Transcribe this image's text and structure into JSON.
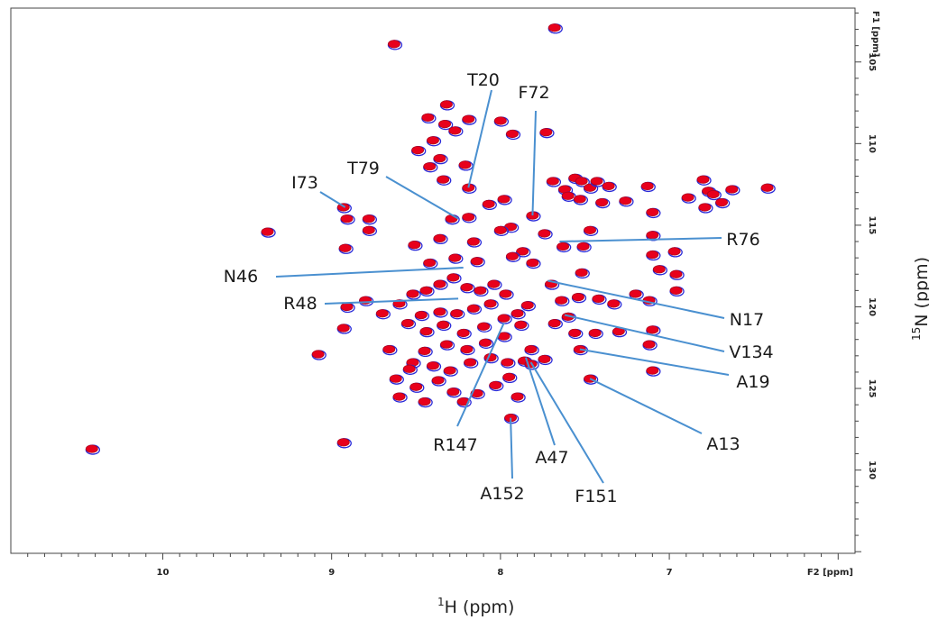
{
  "chart_data": {
    "type": "scatter",
    "x_axis": {
      "unit_label": "F2 [ppm]",
      "title_sup": "1",
      "title_main": "H (ppm)",
      "range": [
        10.9,
        5.9
      ],
      "ticks": [
        10,
        9,
        8,
        7
      ],
      "tick_labels": [
        "10",
        "9",
        "8",
        "7"
      ]
    },
    "y_axis": {
      "unit_label": "F1 [ppm]",
      "title_sup": "15",
      "title_main": "N (ppm)",
      "range": [
        101.7,
        135.1
      ],
      "ticks": [
        105,
        110,
        115,
        120,
        125,
        130
      ],
      "tick_labels": [
        "105",
        "110",
        "115",
        "120",
        "125",
        "130"
      ]
    },
    "grid": false,
    "colors": {
      "spectrum_a": "#e8001c",
      "spectrum_b": "#2a2ad8",
      "leader": "#4a90d0",
      "frame": "#444444"
    },
    "annotations": [
      {
        "label": "T20",
        "peak": [
          8.19,
          112.7
        ]
      },
      {
        "label": "F72",
        "peak": [
          7.81,
          114.4
        ]
      },
      {
        "label": "T79",
        "peak": [
          8.25,
          114.6
        ]
      },
      {
        "label": "I73",
        "peak": [
          8.92,
          113.9
        ]
      },
      {
        "label": "R76",
        "peak": [
          7.65,
          116.0
        ]
      },
      {
        "label": "N46",
        "peak": [
          8.22,
          117.6
        ]
      },
      {
        "label": "R48",
        "peak": [
          8.25,
          119.5
        ]
      },
      {
        "label": "N17",
        "peak": [
          7.72,
          118.4
        ]
      },
      {
        "label": "V134",
        "peak": [
          7.62,
          120.5
        ]
      },
      {
        "label": "A19",
        "peak": [
          7.53,
          122.6
        ]
      },
      {
        "label": "A13",
        "peak": [
          7.47,
          124.4
        ]
      },
      {
        "label": "R147",
        "peak": [
          7.98,
          121.0
        ]
      },
      {
        "label": "A47",
        "peak": [
          7.85,
          123.1
        ]
      },
      {
        "label": "F151",
        "peak": [
          7.82,
          123.4
        ]
      },
      {
        "label": "A152",
        "peak": [
          7.94,
          126.8
        ]
      }
    ],
    "peaks": [
      [
        10.42,
        128.7
      ],
      [
        9.38,
        115.4
      ],
      [
        9.08,
        122.9
      ],
      [
        8.93,
        113.9
      ],
      [
        8.91,
        114.6
      ],
      [
        8.92,
        116.4
      ],
      [
        8.91,
        120.0
      ],
      [
        8.93,
        121.3
      ],
      [
        8.93,
        128.3
      ],
      [
        8.78,
        114.6
      ],
      [
        8.78,
        115.3
      ],
      [
        8.63,
        103.9
      ],
      [
        7.68,
        102.9
      ],
      [
        8.43,
        108.4
      ],
      [
        8.32,
        107.6
      ],
      [
        8.19,
        108.5
      ],
      [
        8.33,
        108.8
      ],
      [
        8.27,
        109.2
      ],
      [
        8.49,
        110.4
      ],
      [
        8.4,
        109.8
      ],
      [
        8.36,
        110.9
      ],
      [
        8.42,
        111.4
      ],
      [
        8.34,
        112.2
      ],
      [
        8.21,
        111.3
      ],
      [
        8.0,
        108.6
      ],
      [
        7.93,
        109.4
      ],
      [
        7.73,
        109.3
      ],
      [
        8.19,
        112.7
      ],
      [
        8.29,
        114.6
      ],
      [
        8.19,
        114.5
      ],
      [
        8.07,
        113.7
      ],
      [
        7.98,
        113.4
      ],
      [
        7.81,
        114.4
      ],
      [
        7.94,
        115.1
      ],
      [
        8.36,
        115.8
      ],
      [
        8.16,
        116.0
      ],
      [
        8.0,
        115.3
      ],
      [
        7.87,
        116.6
      ],
      [
        7.74,
        115.5
      ],
      [
        7.63,
        116.3
      ],
      [
        7.51,
        116.3
      ],
      [
        7.47,
        115.3
      ],
      [
        8.51,
        116.2
      ],
      [
        8.42,
        117.3
      ],
      [
        8.27,
        117.0
      ],
      [
        8.14,
        117.2
      ],
      [
        7.93,
        116.9
      ],
      [
        7.81,
        117.3
      ],
      [
        7.52,
        117.9
      ],
      [
        7.06,
        117.7
      ],
      [
        7.1,
        116.8
      ],
      [
        6.97,
        116.6
      ],
      [
        6.96,
        118.0
      ],
      [
        7.69,
        112.3
      ],
      [
        7.62,
        112.8
      ],
      [
        7.56,
        112.1
      ],
      [
        7.52,
        112.3
      ],
      [
        7.47,
        112.7
      ],
      [
        7.43,
        112.3
      ],
      [
        7.36,
        112.6
      ],
      [
        7.6,
        113.2
      ],
      [
        7.53,
        113.4
      ],
      [
        7.4,
        113.6
      ],
      [
        7.26,
        113.5
      ],
      [
        7.13,
        112.6
      ],
      [
        7.1,
        114.2
      ],
      [
        7.1,
        115.6
      ],
      [
        6.8,
        112.2
      ],
      [
        6.77,
        112.9
      ],
      [
        6.74,
        113.1
      ],
      [
        6.69,
        113.6
      ],
      [
        6.79,
        113.9
      ],
      [
        6.89,
        113.3
      ],
      [
        6.63,
        112.8
      ],
      [
        6.42,
        112.7
      ],
      [
        8.6,
        119.8
      ],
      [
        8.52,
        119.2
      ],
      [
        8.44,
        119.0
      ],
      [
        8.36,
        118.6
      ],
      [
        8.28,
        118.2
      ],
      [
        8.2,
        118.8
      ],
      [
        8.12,
        119.0
      ],
      [
        8.04,
        118.6
      ],
      [
        7.97,
        119.2
      ],
      [
        8.06,
        119.8
      ],
      [
        8.16,
        120.1
      ],
      [
        8.26,
        120.4
      ],
      [
        8.36,
        120.3
      ],
      [
        8.47,
        120.5
      ],
      [
        8.55,
        121.0
      ],
      [
        8.44,
        121.5
      ],
      [
        8.34,
        121.1
      ],
      [
        8.22,
        121.6
      ],
      [
        8.1,
        121.2
      ],
      [
        7.98,
        120.7
      ],
      [
        7.9,
        120.4
      ],
      [
        7.84,
        119.9
      ],
      [
        7.88,
        121.1
      ],
      [
        7.98,
        121.8
      ],
      [
        8.09,
        122.2
      ],
      [
        8.2,
        122.6
      ],
      [
        8.32,
        122.3
      ],
      [
        8.45,
        122.7
      ],
      [
        8.52,
        123.4
      ],
      [
        8.4,
        123.6
      ],
      [
        8.3,
        123.9
      ],
      [
        8.18,
        123.4
      ],
      [
        8.06,
        123.1
      ],
      [
        7.96,
        123.4
      ],
      [
        7.86,
        123.3
      ],
      [
        7.82,
        122.6
      ],
      [
        7.82,
        123.5
      ],
      [
        7.74,
        123.2
      ],
      [
        8.5,
        124.9
      ],
      [
        8.37,
        124.5
      ],
      [
        8.28,
        125.2
      ],
      [
        8.45,
        125.8
      ],
      [
        8.22,
        125.8
      ],
      [
        8.14,
        125.3
      ],
      [
        8.03,
        124.8
      ],
      [
        7.95,
        124.3
      ],
      [
        7.9,
        125.5
      ],
      [
        7.94,
        126.8
      ],
      [
        7.7,
        118.6
      ],
      [
        7.64,
        119.6
      ],
      [
        7.6,
        120.6
      ],
      [
        7.54,
        119.4
      ],
      [
        7.42,
        119.5
      ],
      [
        7.33,
        119.8
      ],
      [
        7.2,
        119.2
      ],
      [
        7.68,
        121.0
      ],
      [
        7.56,
        121.6
      ],
      [
        7.44,
        121.6
      ],
      [
        7.3,
        121.5
      ],
      [
        7.1,
        121.4
      ],
      [
        7.12,
        122.3
      ],
      [
        7.53,
        122.6
      ],
      [
        7.47,
        124.4
      ],
      [
        7.1,
        123.9
      ],
      [
        7.12,
        119.6
      ],
      [
        6.96,
        119.0
      ],
      [
        8.7,
        120.4
      ],
      [
        8.8,
        119.6
      ],
      [
        8.66,
        122.6
      ],
      [
        8.54,
        123.8
      ],
      [
        8.62,
        124.4
      ],
      [
        8.6,
        125.5
      ]
    ]
  }
}
